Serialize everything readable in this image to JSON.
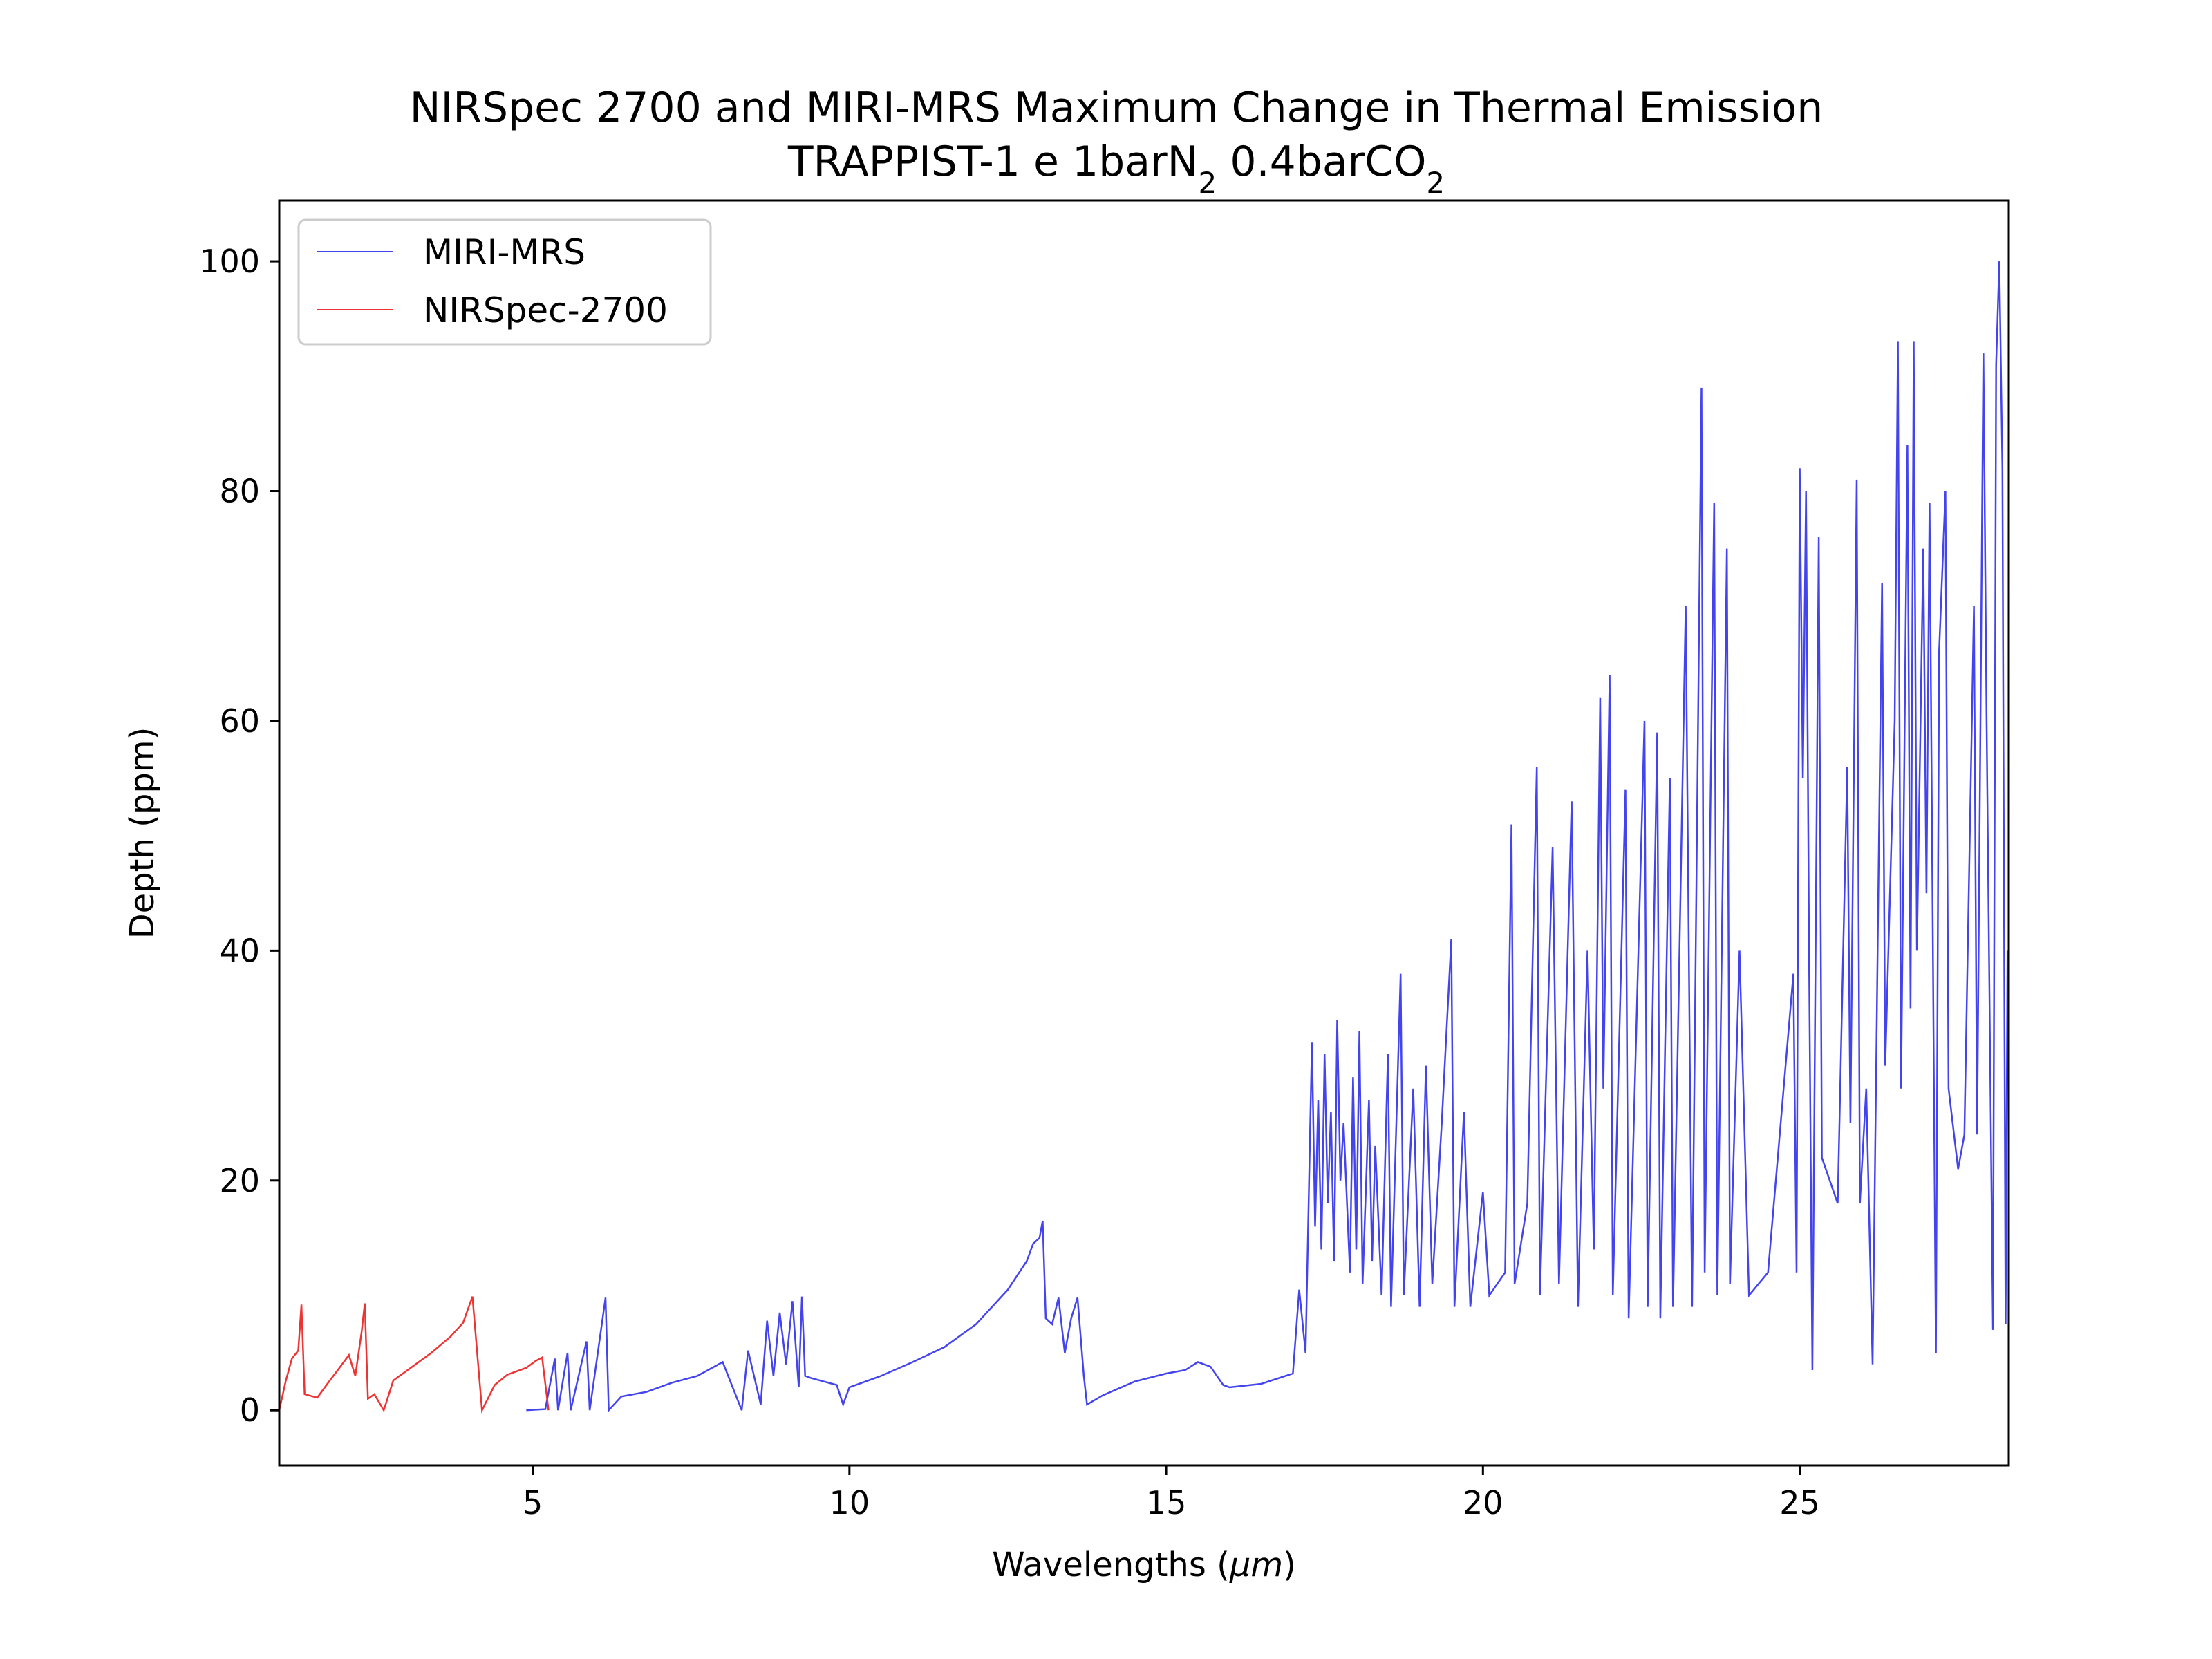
{
  "chart_data": {
    "type": "line",
    "title": "NIRSpec 2700 and MIRI-MRS Maximum Change in Thermal Emission",
    "subtitle": {
      "prefix": "TRAPPIST-1 e 1barN",
      "sub1": "2",
      "middle": " 0.4barCO",
      "sub2": "2"
    },
    "xlabel": {
      "prefix": "Wavelengths (",
      "unit": "μm",
      "suffix": ")"
    },
    "ylabel": "Depth (ppm)",
    "xlim": [
      1.0,
      28.3
    ],
    "ylim": [
      -4.8,
      105.3
    ],
    "x_ticks": [
      5,
      10,
      15,
      20,
      25
    ],
    "x_tick_labels": [
      "5",
      "10",
      "15",
      "20",
      "25"
    ],
    "y_ticks": [
      0,
      20,
      40,
      60,
      80,
      100
    ],
    "y_tick_labels": [
      "0",
      "20",
      "40",
      "60",
      "80",
      "100"
    ],
    "grid": false,
    "legend_position": "upper-left",
    "series": [
      {
        "name": "MIRI-MRS",
        "color": "#4444ee",
        "points": [
          [
            4.9,
            0
          ],
          [
            5.2,
            0.1
          ],
          [
            5.35,
            4.5
          ],
          [
            5.4,
            0
          ],
          [
            5.55,
            5
          ],
          [
            5.6,
            0
          ],
          [
            5.85,
            6
          ],
          [
            5.9,
            0
          ],
          [
            6.15,
            9.8
          ],
          [
            6.2,
            0
          ],
          [
            6.4,
            1.2
          ],
          [
            6.8,
            1.6
          ],
          [
            7.2,
            2.4
          ],
          [
            7.6,
            3.0
          ],
          [
            8.0,
            4.2
          ],
          [
            8.3,
            0
          ],
          [
            8.4,
            5.2
          ],
          [
            8.6,
            0.5
          ],
          [
            8.7,
            7.8
          ],
          [
            8.8,
            3
          ],
          [
            8.9,
            8.5
          ],
          [
            9.0,
            4
          ],
          [
            9.1,
            9.5
          ],
          [
            9.2,
            2
          ],
          [
            9.25,
            9.9
          ],
          [
            9.3,
            3
          ],
          [
            9.4,
            2.8
          ],
          [
            9.6,
            2.5
          ],
          [
            9.8,
            2.2
          ],
          [
            9.9,
            0.5
          ],
          [
            10.0,
            2.0
          ],
          [
            10.5,
            3.0
          ],
          [
            11.0,
            4.2
          ],
          [
            11.5,
            5.5
          ],
          [
            12.0,
            7.5
          ],
          [
            12.5,
            10.5
          ],
          [
            12.8,
            13
          ],
          [
            12.9,
            14.5
          ],
          [
            13.0,
            15
          ],
          [
            13.05,
            16.5
          ],
          [
            13.1,
            8
          ],
          [
            13.2,
            7.5
          ],
          [
            13.3,
            9.8
          ],
          [
            13.4,
            5
          ],
          [
            13.5,
            8
          ],
          [
            13.6,
            9.8
          ],
          [
            13.7,
            3
          ],
          [
            13.75,
            0.5
          ],
          [
            14.0,
            1.3
          ],
          [
            14.5,
            2.5
          ],
          [
            15.0,
            3.2
          ],
          [
            15.3,
            3.5
          ],
          [
            15.5,
            4.2
          ],
          [
            15.7,
            3.8
          ],
          [
            15.9,
            2.2
          ],
          [
            16.0,
            2.0
          ],
          [
            16.5,
            2.3
          ],
          [
            17.0,
            3.2
          ],
          [
            17.1,
            10.5
          ],
          [
            17.2,
            5
          ],
          [
            17.3,
            32
          ],
          [
            17.35,
            16
          ],
          [
            17.4,
            27
          ],
          [
            17.45,
            14
          ],
          [
            17.5,
            31
          ],
          [
            17.55,
            18
          ],
          [
            17.6,
            26
          ],
          [
            17.65,
            13
          ],
          [
            17.7,
            34
          ],
          [
            17.75,
            20
          ],
          [
            17.8,
            25
          ],
          [
            17.9,
            12
          ],
          [
            17.95,
            29
          ],
          [
            18.0,
            14
          ],
          [
            18.05,
            33
          ],
          [
            18.1,
            11
          ],
          [
            18.2,
            27
          ],
          [
            18.25,
            13
          ],
          [
            18.3,
            23
          ],
          [
            18.4,
            10
          ],
          [
            18.5,
            31
          ],
          [
            18.55,
            9
          ],
          [
            18.7,
            38
          ],
          [
            18.75,
            10
          ],
          [
            18.9,
            28
          ],
          [
            19.0,
            9
          ],
          [
            19.1,
            30
          ],
          [
            19.2,
            11
          ],
          [
            19.35,
            25
          ],
          [
            19.5,
            41
          ],
          [
            19.55,
            9
          ],
          [
            19.7,
            26
          ],
          [
            19.8,
            9
          ],
          [
            20.0,
            19
          ],
          [
            20.1,
            10
          ],
          [
            20.35,
            12
          ],
          [
            20.45,
            51
          ],
          [
            20.5,
            11
          ],
          [
            20.7,
            18
          ],
          [
            20.85,
            56
          ],
          [
            20.9,
            10
          ],
          [
            21.1,
            49
          ],
          [
            21.2,
            11
          ],
          [
            21.4,
            53
          ],
          [
            21.5,
            9
          ],
          [
            21.65,
            40
          ],
          [
            21.75,
            14
          ],
          [
            21.85,
            62
          ],
          [
            21.9,
            28
          ],
          [
            22.0,
            64
          ],
          [
            22.05,
            10
          ],
          [
            22.25,
            54
          ],
          [
            22.3,
            8
          ],
          [
            22.55,
            60
          ],
          [
            22.6,
            9
          ],
          [
            22.75,
            59
          ],
          [
            22.8,
            8
          ],
          [
            22.95,
            55
          ],
          [
            23.0,
            9
          ],
          [
            23.2,
            70
          ],
          [
            23.3,
            9
          ],
          [
            23.45,
            89
          ],
          [
            23.5,
            12
          ],
          [
            23.65,
            79
          ],
          [
            23.7,
            10
          ],
          [
            23.85,
            75
          ],
          [
            23.9,
            11
          ],
          [
            24.05,
            40
          ],
          [
            24.2,
            10
          ],
          [
            24.5,
            12
          ],
          [
            24.9,
            38
          ],
          [
            24.95,
            12
          ],
          [
            25.0,
            82
          ],
          [
            25.05,
            55
          ],
          [
            25.1,
            80
          ],
          [
            25.15,
            38
          ],
          [
            25.2,
            3.5
          ],
          [
            25.3,
            76
          ],
          [
            25.35,
            22
          ],
          [
            25.6,
            18
          ],
          [
            25.75,
            56
          ],
          [
            25.8,
            25
          ],
          [
            25.9,
            81
          ],
          [
            25.95,
            18
          ],
          [
            26.05,
            28
          ],
          [
            26.15,
            4
          ],
          [
            26.3,
            72
          ],
          [
            26.35,
            30
          ],
          [
            26.5,
            60
          ],
          [
            26.55,
            93
          ],
          [
            26.6,
            28
          ],
          [
            26.7,
            84
          ],
          [
            26.75,
            35
          ],
          [
            26.8,
            93
          ],
          [
            26.85,
            40
          ],
          [
            26.95,
            75
          ],
          [
            27.0,
            45
          ],
          [
            27.05,
            79
          ],
          [
            27.15,
            5
          ],
          [
            27.2,
            66
          ],
          [
            27.3,
            80
          ],
          [
            27.35,
            28
          ],
          [
            27.5,
            21
          ],
          [
            27.6,
            24
          ],
          [
            27.75,
            70
          ],
          [
            27.8,
            24
          ],
          [
            27.9,
            92
          ],
          [
            27.95,
            60
          ],
          [
            28.05,
            7
          ],
          [
            28.1,
            91
          ],
          [
            28.15,
            100
          ],
          [
            28.2,
            82
          ],
          [
            28.25,
            7.5
          ],
          [
            28.28,
            40
          ]
        ]
      },
      {
        "name": "NIRSpec-2700",
        "color": "#ee3333",
        "points": [
          [
            1.0,
            0
          ],
          [
            1.1,
            2.5
          ],
          [
            1.2,
            4.5
          ],
          [
            1.3,
            5.2
          ],
          [
            1.35,
            9.2
          ],
          [
            1.4,
            1.4
          ],
          [
            1.6,
            1.1
          ],
          [
            1.8,
            2.6
          ],
          [
            1.95,
            3.7
          ],
          [
            2.1,
            4.8
          ],
          [
            2.2,
            3.0
          ],
          [
            2.3,
            6.8
          ],
          [
            2.35,
            9.3
          ],
          [
            2.4,
            1.0
          ],
          [
            2.5,
            1.4
          ],
          [
            2.65,
            0
          ],
          [
            2.8,
            2.6
          ],
          [
            3.1,
            3.8
          ],
          [
            3.4,
            5.0
          ],
          [
            3.7,
            6.4
          ],
          [
            3.9,
            7.6
          ],
          [
            4.05,
            9.9
          ],
          [
            4.2,
            0
          ],
          [
            4.4,
            2.2
          ],
          [
            4.6,
            3.1
          ],
          [
            4.9,
            3.7
          ],
          [
            5.05,
            4.3
          ],
          [
            5.15,
            4.6
          ],
          [
            5.25,
            0
          ]
        ]
      }
    ]
  }
}
